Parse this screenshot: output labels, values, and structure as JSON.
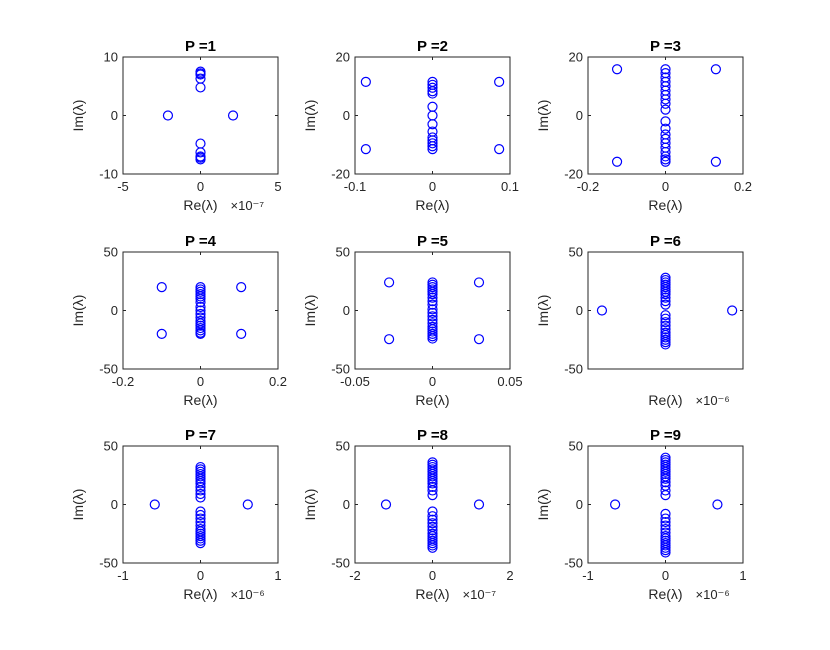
{
  "figure": {
    "marker_color": "#0000ff",
    "axes_color": "#262626",
    "background": "#ffffff"
  },
  "chart_data": [
    {
      "type": "scatter",
      "title": "P =1",
      "xlabel": "Re(λ)",
      "ylabel": "Im(λ)",
      "xexponent": "×10⁻⁷",
      "xlim": [
        -5e-07,
        5e-07
      ],
      "ylim": [
        -10,
        10
      ],
      "xticks": [
        -5e-07,
        0,
        5e-07
      ],
      "xticklabels": [
        "-5",
        "0",
        "5"
      ],
      "yticks": [
        -10,
        0,
        10
      ],
      "yticklabels": [
        "-10",
        "0",
        "10"
      ],
      "series": [
        {
          "x": [
            -2.1e-07,
            2.1e-07,
            0,
            0,
            0,
            0,
            0,
            0,
            0,
            0,
            0,
            0
          ],
          "y": [
            0,
            0,
            7.5,
            7.0,
            6.3,
            4.8,
            -4.8,
            -6.3,
            -7.0,
            -7.5,
            7.2,
            -7.2
          ]
        }
      ]
    },
    {
      "type": "scatter",
      "title": "P =2",
      "xlabel": "Re(λ)",
      "ylabel": "Im(λ)",
      "xexponent": "",
      "xlim": [
        -0.1,
        0.1
      ],
      "ylim": [
        -20,
        20
      ],
      "xticks": [
        -0.1,
        0,
        0.1
      ],
      "xticklabels": [
        "-0.1",
        "0",
        "0.1"
      ],
      "yticks": [
        -20,
        0,
        20
      ],
      "yticklabels": [
        "-20",
        "0",
        "20"
      ],
      "series": [
        {
          "x": [
            -0.086,
            0.086,
            -0.086,
            0.086,
            0,
            0,
            0,
            0,
            0,
            0,
            0,
            0,
            0,
            0,
            0,
            0,
            0,
            0
          ],
          "y": [
            11.5,
            11.5,
            -11.5,
            -11.5,
            11.5,
            10.5,
            9.5,
            8.3,
            7.5,
            3.0,
            0,
            -3.0,
            -5.5,
            -7.5,
            -8.5,
            -9.5,
            -10.5,
            -11.5
          ]
        }
      ]
    },
    {
      "type": "scatter",
      "title": "P =3",
      "xlabel": "Re(λ)",
      "ylabel": "Im(λ)",
      "xexponent": "",
      "xlim": [
        -0.2,
        0.2
      ],
      "ylim": [
        -20,
        20
      ],
      "xticks": [
        -0.2,
        0,
        0.2
      ],
      "xticklabels": [
        "-0.2",
        "0",
        "0.2"
      ],
      "yticks": [
        -20,
        0,
        20
      ],
      "yticklabels": [
        "-20",
        "0",
        "20"
      ],
      "series": [
        {
          "x": [
            -0.125,
            0.13,
            -0.125,
            0.13,
            0,
            0,
            0,
            0,
            0,
            0,
            0,
            0,
            0,
            0,
            0,
            0,
            0,
            0,
            0,
            0,
            0,
            0,
            0,
            0
          ],
          "y": [
            15.8,
            15.8,
            -15.8,
            -15.8,
            15.8,
            14.5,
            13.0,
            11.5,
            10.0,
            8.5,
            7.0,
            5.5,
            4.0,
            2.0,
            -2.0,
            -4.5,
            -6.5,
            -8.0,
            -9.5,
            -11.0,
            -12.5,
            -14.0,
            -15.0,
            -15.8
          ]
        }
      ]
    },
    {
      "type": "scatter",
      "title": "P =4",
      "xlabel": "Re(λ)",
      "ylabel": "Im(λ)",
      "xexponent": "",
      "xlim": [
        -0.2,
        0.2
      ],
      "ylim": [
        -50,
        50
      ],
      "xticks": [
        -0.2,
        0,
        0.2
      ],
      "xticklabels": [
        "-0.2",
        "0",
        "0.2"
      ],
      "yticks": [
        -50,
        0,
        50
      ],
      "yticklabels": [
        "-50",
        "0",
        "50"
      ],
      "series": [
        {
          "x": [
            -0.1,
            0.105,
            -0.1,
            0.105,
            0,
            0,
            0,
            0,
            0,
            0,
            0,
            0,
            0,
            0,
            0,
            0,
            0,
            0,
            0,
            0,
            0,
            0
          ],
          "y": [
            20,
            20,
            -20,
            -20,
            20,
            18,
            16,
            14,
            12,
            10,
            7,
            3,
            0,
            -3,
            -6,
            -9,
            -11,
            -13,
            -15,
            -17,
            -19,
            -20
          ]
        }
      ]
    },
    {
      "type": "scatter",
      "title": "P =5",
      "xlabel": "Re(λ)",
      "ylabel": "Im(λ)",
      "xexponent": "",
      "xlim": [
        -0.05,
        0.05
      ],
      "ylim": [
        -50,
        50
      ],
      "xticks": [
        -0.05,
        0,
        0.05
      ],
      "xticklabels": [
        "-0.05",
        "0",
        "0.05"
      ],
      "yticks": [
        -50,
        0,
        50
      ],
      "yticklabels": [
        "-50",
        "0",
        "50"
      ],
      "series": [
        {
          "x": [
            -0.028,
            0.03,
            -0.028,
            0.03,
            0,
            0,
            0,
            0,
            0,
            0,
            0,
            0,
            0,
            0,
            0,
            0,
            0,
            0,
            0,
            0,
            0,
            0,
            0,
            0
          ],
          "y": [
            24,
            24,
            -24.5,
            -24.5,
            24,
            22,
            20,
            18,
            16,
            14,
            11,
            8,
            5,
            1,
            -2,
            -5,
            -8,
            -11,
            -14,
            -16,
            -18,
            -20,
            -22,
            -24
          ]
        }
      ]
    },
    {
      "type": "scatter",
      "title": "P =6",
      "xlabel": "Re(λ)",
      "ylabel": "Im(λ)",
      "xexponent": "×10⁻⁶",
      "xlim": [
        -1e-06,
        1e-06
      ],
      "ylim": [
        -50,
        50
      ],
      "xticks": [],
      "xticklabels": [],
      "yticks": [
        -50,
        0,
        50
      ],
      "yticklabels": [
        "-50",
        "0",
        "50"
      ],
      "series": [
        {
          "x": [
            -8.2e-07,
            8.6e-07,
            0,
            0,
            0,
            0,
            0,
            0,
            0,
            0,
            0,
            0,
            0,
            0,
            0,
            0,
            0,
            0,
            0,
            0,
            0,
            0,
            0,
            0
          ],
          "y": [
            0,
            0,
            28,
            26,
            24,
            22,
            20,
            18,
            16,
            14,
            11,
            8,
            5,
            -4,
            -7,
            -10,
            -13,
            -16,
            -19,
            -21,
            -23,
            -25,
            -27,
            -29
          ]
        }
      ]
    },
    {
      "type": "scatter",
      "title": "P =7",
      "xlabel": "Re(λ)",
      "ylabel": "Im(λ)",
      "xexponent": "×10⁻⁶",
      "xlim": [
        -1e-06,
        1e-06
      ],
      "ylim": [
        -50,
        50
      ],
      "xticks": [
        -1e-06,
        0,
        1e-06
      ],
      "xticklabels": [
        "-1",
        "0",
        "1"
      ],
      "yticks": [
        -50,
        0,
        50
      ],
      "yticklabels": [
        "-50",
        "0",
        "50"
      ],
      "series": [
        {
          "x": [
            -5.9e-07,
            6.1e-07,
            0,
            0,
            0,
            0,
            0,
            0,
            0,
            0,
            0,
            0,
            0,
            0,
            0,
            0,
            0,
            0,
            0,
            0,
            0,
            0,
            0,
            0,
            0,
            0
          ],
          "y": [
            0,
            0,
            32,
            30,
            28,
            26,
            24,
            22,
            20,
            18,
            15,
            12,
            9,
            6,
            -6,
            -9,
            -12,
            -15,
            -18,
            -21,
            -23,
            -25,
            -27,
            -29,
            -31,
            -33
          ]
        }
      ]
    },
    {
      "type": "scatter",
      "title": "P =8",
      "xlabel": "Re(λ)",
      "ylabel": "Im(λ)",
      "xexponent": "×10⁻⁷",
      "xlim": [
        -2e-07,
        2e-07
      ],
      "ylim": [
        -50,
        50
      ],
      "xticks": [
        -2e-07,
        0,
        2e-07
      ],
      "xticklabels": [
        "-2",
        "0",
        "2"
      ],
      "yticks": [
        -50,
        0,
        50
      ],
      "yticklabels": [
        "-50",
        "0",
        "50"
      ],
      "series": [
        {
          "x": [
            -1.2e-07,
            1.2e-07,
            0,
            0,
            0,
            0,
            0,
            0,
            0,
            0,
            0,
            0,
            0,
            0,
            0,
            0,
            0,
            0,
            0,
            0,
            0,
            0,
            0,
            0,
            0,
            0,
            0,
            0
          ],
          "y": [
            0,
            0,
            36,
            34,
            32,
            30,
            28,
            26,
            24,
            22,
            20,
            18,
            15,
            12,
            8,
            -6,
            -10,
            -13,
            -16,
            -19,
            -22,
            -25,
            -27,
            -29,
            -31,
            -33,
            -35,
            -37
          ]
        }
      ]
    },
    {
      "type": "scatter",
      "title": "P =9",
      "xlabel": "Re(λ)",
      "ylabel": "Im(λ)",
      "xexponent": "×10⁻⁶",
      "xlim": [
        -1e-06,
        1e-06
      ],
      "ylim": [
        -50,
        50
      ],
      "xticks": [
        -1e-06,
        0,
        1e-06
      ],
      "xticklabels": [
        "-1",
        "0",
        "1"
      ],
      "yticks": [
        -50,
        0,
        50
      ],
      "yticklabels": [
        "-50",
        "0",
        "50"
      ],
      "series": [
        {
          "x": [
            -6.5e-07,
            6.7e-07,
            0,
            0,
            0,
            0,
            0,
            0,
            0,
            0,
            0,
            0,
            0,
            0,
            0,
            0,
            0,
            0,
            0,
            0,
            0,
            0,
            0,
            0,
            0,
            0,
            0,
            0,
            0,
            0
          ],
          "y": [
            0,
            0,
            40,
            38,
            36,
            34,
            32,
            30,
            28,
            26,
            24,
            22,
            19,
            16,
            12,
            8,
            -8,
            -12,
            -15,
            -18,
            -21,
            -24,
            -27,
            -29,
            -31,
            -33,
            -35,
            -37,
            -39,
            -41
          ]
        }
      ]
    }
  ]
}
